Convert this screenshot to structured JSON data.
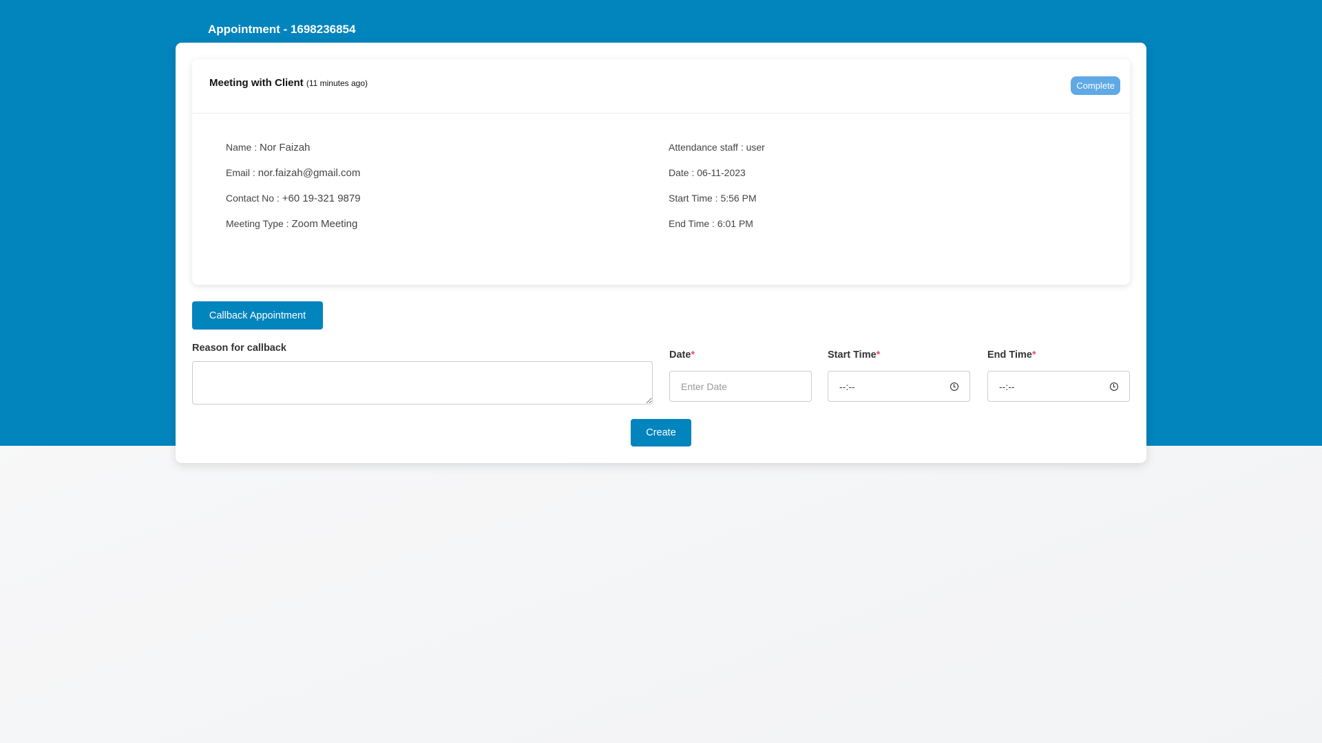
{
  "header": {
    "title": "Appointment - 1698236854"
  },
  "meeting": {
    "title": "Meeting with Client",
    "ago": "(11 minutes ago)",
    "status": "Complete"
  },
  "details_left": [
    {
      "label": "Name :",
      "value": "Nor Faizah"
    },
    {
      "label": "Email :",
      "value": "nor.faizah@gmail.com"
    },
    {
      "label": "Contact No :",
      "value": "+60 19-321 9879"
    },
    {
      "label": "Meeting Type :",
      "value": "Zoom Meeting"
    }
  ],
  "details_right": [
    {
      "label": "Attendance staff :",
      "value": "user"
    },
    {
      "label": "Date :",
      "value": "06-11-2023"
    },
    {
      "label": "Start Time :",
      "value": "5:56 PM"
    },
    {
      "label": "End Time :",
      "value": "6:01 PM"
    }
  ],
  "callback": {
    "button": "Callback Appointment",
    "reason_label": "Reason for callback",
    "date_label": "Date",
    "date_placeholder": "Enter Date",
    "start_label": "Start Time",
    "start_value": "--:--",
    "end_label": "End Time",
    "end_value": "--:--",
    "required_mark": "*",
    "create": "Create"
  },
  "colors": {
    "primary": "#0284bd",
    "badge": "#5fa9e6",
    "required": "#e5506a"
  }
}
